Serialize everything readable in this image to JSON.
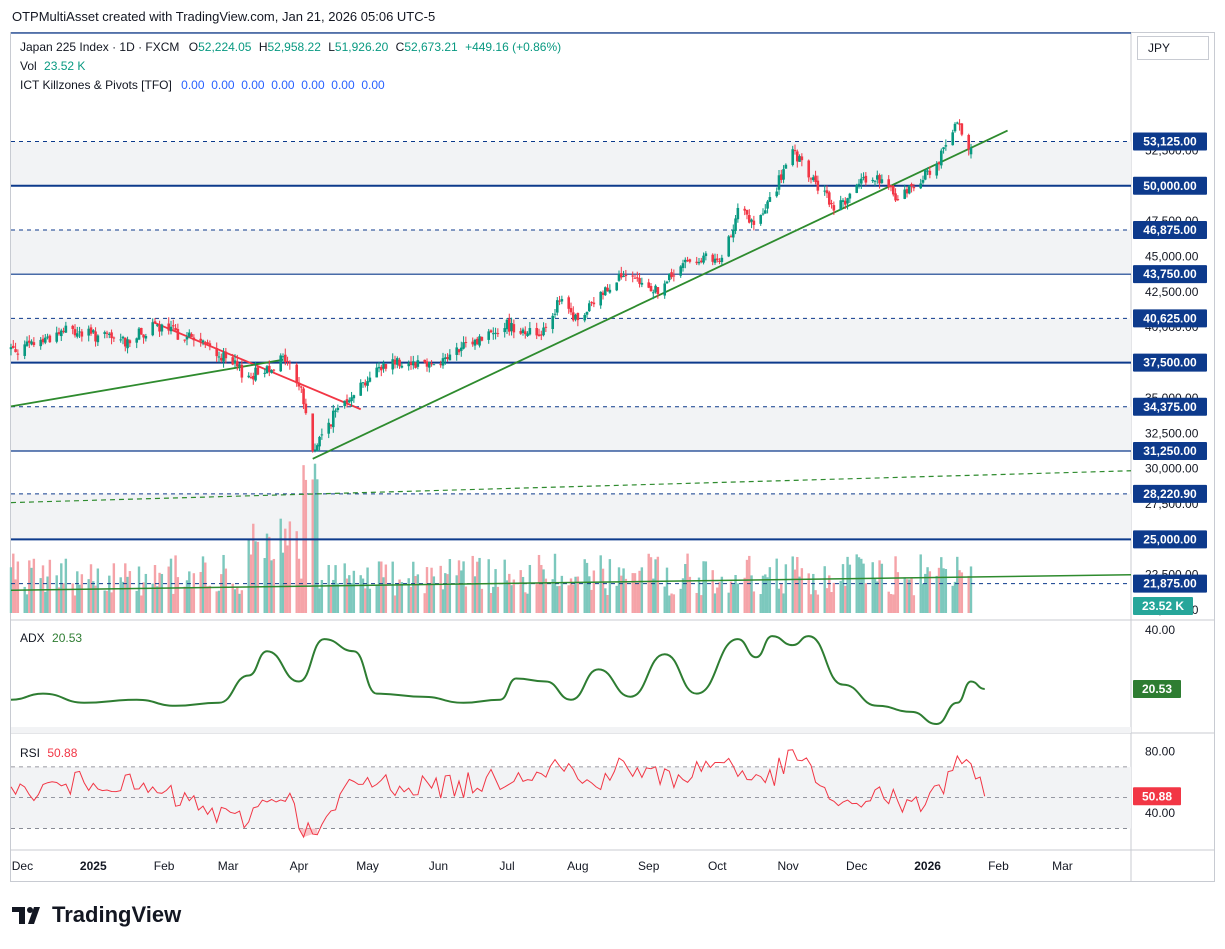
{
  "caption": "OTPMultiAsset created with TradingView.com, Jan 21, 2026 05:06 UTC-5",
  "legend": {
    "symbol": "Japan 225 Index · 1D · FXCM",
    "o_label": "O",
    "o_val": "52,224.05",
    "h_label": "H",
    "h_val": "52,958.22",
    "l_label": "L",
    "l_val": "51,926.20",
    "c_label": "C",
    "c_val": "52,673.21",
    "change": "+449.16 (+0.86%)",
    "vol_label": "Vol",
    "vol_val": "23.52 K",
    "ind_label": "ICT Killzones & Pivots [TFO]",
    "ind_vals": "0.00  0.00  0.00  0.00  0.00  0.00  0.00"
  },
  "currency": "JPY",
  "brand": "TradingView",
  "colors": {
    "up": "#089981",
    "down": "#f23645",
    "level": "#0d3a8c",
    "trend_green": "#2e8b2e",
    "trend_red": "#f23645",
    "adx": "#2e7d32",
    "rsi": "#f23645",
    "vol_up": "#7cc8bd",
    "vol_down": "#f5a3a8"
  },
  "chart_data": [
    {
      "type": "candlestick",
      "name": "Japan 225 Index",
      "y_axis": {
        "range": [
          19300,
          60800
        ],
        "ticks": [
          "20,000.00",
          "22,500.00",
          "27,500.00",
          "30,000.00",
          "32,500.00",
          "35,000.00",
          "40,000.00",
          "42,500.00",
          "45,000.00",
          "47,500.00",
          "52,500.00"
        ]
      },
      "x_axis": {
        "labels": [
          "Dec",
          "2025",
          "Feb",
          "Mar",
          "Apr",
          "May",
          "Jun",
          "Jul",
          "Aug",
          "Sep",
          "Oct",
          "Nov",
          "Dec",
          "2026",
          "Feb",
          "Mar"
        ]
      },
      "levels": [
        {
          "value": 53125,
          "label": "53,125.00",
          "style": "dashed"
        },
        {
          "value": 50000,
          "label": "50,000.00",
          "style": "solid-thick"
        },
        {
          "value": 46875,
          "label": "46,875.00",
          "style": "dashed"
        },
        {
          "value": 43750,
          "label": "43,750.00",
          "style": "solid"
        },
        {
          "value": 40625,
          "label": "40,625.00",
          "style": "dashed"
        },
        {
          "value": 37500,
          "label": "37,500.00",
          "style": "solid-thick"
        },
        {
          "value": 34375,
          "label": "34,375.00",
          "style": "dashed"
        },
        {
          "value": 31250,
          "label": "31,250.00",
          "style": "solid"
        },
        {
          "value": 28220.9,
          "label": "28,220.90",
          "style": "dashed"
        },
        {
          "value": 25000,
          "label": "25,000.00",
          "style": "solid-thick"
        },
        {
          "value": 21875,
          "label": "21,875.00",
          "style": "dashed"
        }
      ],
      "anchors": [
        [
          "2024-12-01",
          38500
        ],
        [
          "2024-12-20",
          39800
        ],
        [
          "2025-01-15",
          39000
        ],
        [
          "2025-01-28",
          40000
        ],
        [
          "2025-02-15",
          39200
        ],
        [
          "2025-03-10",
          36500
        ],
        [
          "2025-03-26",
          37800
        ],
        [
          "2025-04-02",
          35600
        ],
        [
          "2025-04-07",
          31200
        ],
        [
          "2025-04-20",
          34800
        ],
        [
          "2025-05-10",
          37600
        ],
        [
          "2025-06-01",
          37500
        ],
        [
          "2025-06-30",
          40200
        ],
        [
          "2025-07-15",
          39500
        ],
        [
          "2025-07-24",
          41800
        ],
        [
          "2025-08-01",
          40400
        ],
        [
          "2025-08-18",
          43600
        ],
        [
          "2025-09-05",
          42600
        ],
        [
          "2025-09-20",
          45000
        ],
        [
          "2025-10-03",
          44500
        ],
        [
          "2025-10-10",
          48500
        ],
        [
          "2025-10-18",
          47000
        ],
        [
          "2025-11-03",
          52300
        ],
        [
          "2025-11-21",
          48400
        ],
        [
          "2025-12-08",
          50800
        ],
        [
          "2025-12-19",
          49100
        ],
        [
          "2026-01-05",
          51500
        ],
        [
          "2026-01-14",
          54300
        ],
        [
          "2026-01-20",
          52673
        ]
      ],
      "volume_last": "23.52 K",
      "trendlines": [
        {
          "color": "green",
          "from": [
            "2025-04-07",
            30700
          ],
          "to": [
            "2026-02-05",
            53900
          ]
        },
        {
          "color": "red",
          "from": [
            "2025-01-28",
            40300
          ],
          "to": [
            "2025-04-28",
            34200
          ]
        },
        {
          "color": "green",
          "from": [
            "2024-11-26",
            34400
          ],
          "to": [
            "2025-03-25",
            37700
          ]
        },
        {
          "color": "green",
          "from": [
            "2024-11-26",
            21400
          ],
          "to": [
            "2026-03-31",
            22500
          ]
        },
        {
          "color": "green-dashed",
          "from": [
            "2024-11-26",
            27600
          ],
          "to": [
            "2026-03-31",
            29850
          ]
        }
      ]
    },
    {
      "type": "line",
      "name": "ADX",
      "value_label": "20.53",
      "y_axis": {
        "range": [
          8,
          40
        ],
        "ticks": [
          "40.00"
        ]
      },
      "anchors": [
        [
          "2024-11-26",
          17
        ],
        [
          "2024-12-10",
          19
        ],
        [
          "2024-12-28",
          16
        ],
        [
          "2025-01-20",
          17
        ],
        [
          "2025-02-06",
          15
        ],
        [
          "2025-02-25",
          16
        ],
        [
          "2025-03-10",
          25
        ],
        [
          "2025-03-18",
          33
        ],
        [
          "2025-04-01",
          23
        ],
        [
          "2025-04-12",
          37
        ],
        [
          "2025-04-25",
          33
        ],
        [
          "2025-05-05",
          19
        ],
        [
          "2025-05-25",
          18
        ],
        [
          "2025-06-12",
          16
        ],
        [
          "2025-06-28",
          17
        ],
        [
          "2025-07-05",
          24
        ],
        [
          "2025-07-18",
          23
        ],
        [
          "2025-07-29",
          17
        ],
        [
          "2025-08-10",
          27
        ],
        [
          "2025-08-24",
          18
        ],
        [
          "2025-09-08",
          32
        ],
        [
          "2025-09-22",
          19
        ],
        [
          "2025-10-10",
          37
        ],
        [
          "2025-10-18",
          31
        ],
        [
          "2025-10-25",
          38
        ],
        [
          "2025-11-03",
          35
        ],
        [
          "2025-11-10",
          38
        ],
        [
          "2025-11-25",
          22
        ],
        [
          "2025-12-10",
          15
        ],
        [
          "2025-12-25",
          13
        ],
        [
          "2026-01-05",
          9
        ],
        [
          "2026-01-14",
          16
        ],
        [
          "2026-01-20",
          23
        ],
        [
          "2026-01-26",
          20.53
        ]
      ]
    },
    {
      "type": "line",
      "name": "RSI",
      "value_label": "50.88",
      "y_axis": {
        "range": [
          16,
          92
        ],
        "ticks": [
          "80.00",
          "40.00"
        ],
        "bands": [
          70,
          50,
          30
        ]
      },
      "seed_points": [
        [
          "2024-11-26",
          52
        ],
        [
          "2025-01-05",
          62
        ],
        [
          "2025-02-10",
          48
        ],
        [
          "2025-03-05",
          34
        ],
        [
          "2025-03-25",
          55
        ],
        [
          "2025-04-07",
          22
        ],
        [
          "2025-04-25",
          60
        ],
        [
          "2025-06-10",
          57
        ],
        [
          "2025-07-25",
          72
        ],
        [
          "2025-08-05",
          58
        ],
        [
          "2025-08-20",
          70
        ],
        [
          "2025-09-10",
          62
        ],
        [
          "2025-10-05",
          75
        ],
        [
          "2025-10-20",
          58
        ],
        [
          "2025-11-05",
          78
        ],
        [
          "2025-11-25",
          40
        ],
        [
          "2025-12-10",
          55
        ],
        [
          "2025-12-25",
          42
        ],
        [
          "2026-01-08",
          58
        ],
        [
          "2026-01-14",
          78
        ],
        [
          "2026-01-26",
          50.88
        ]
      ]
    }
  ]
}
